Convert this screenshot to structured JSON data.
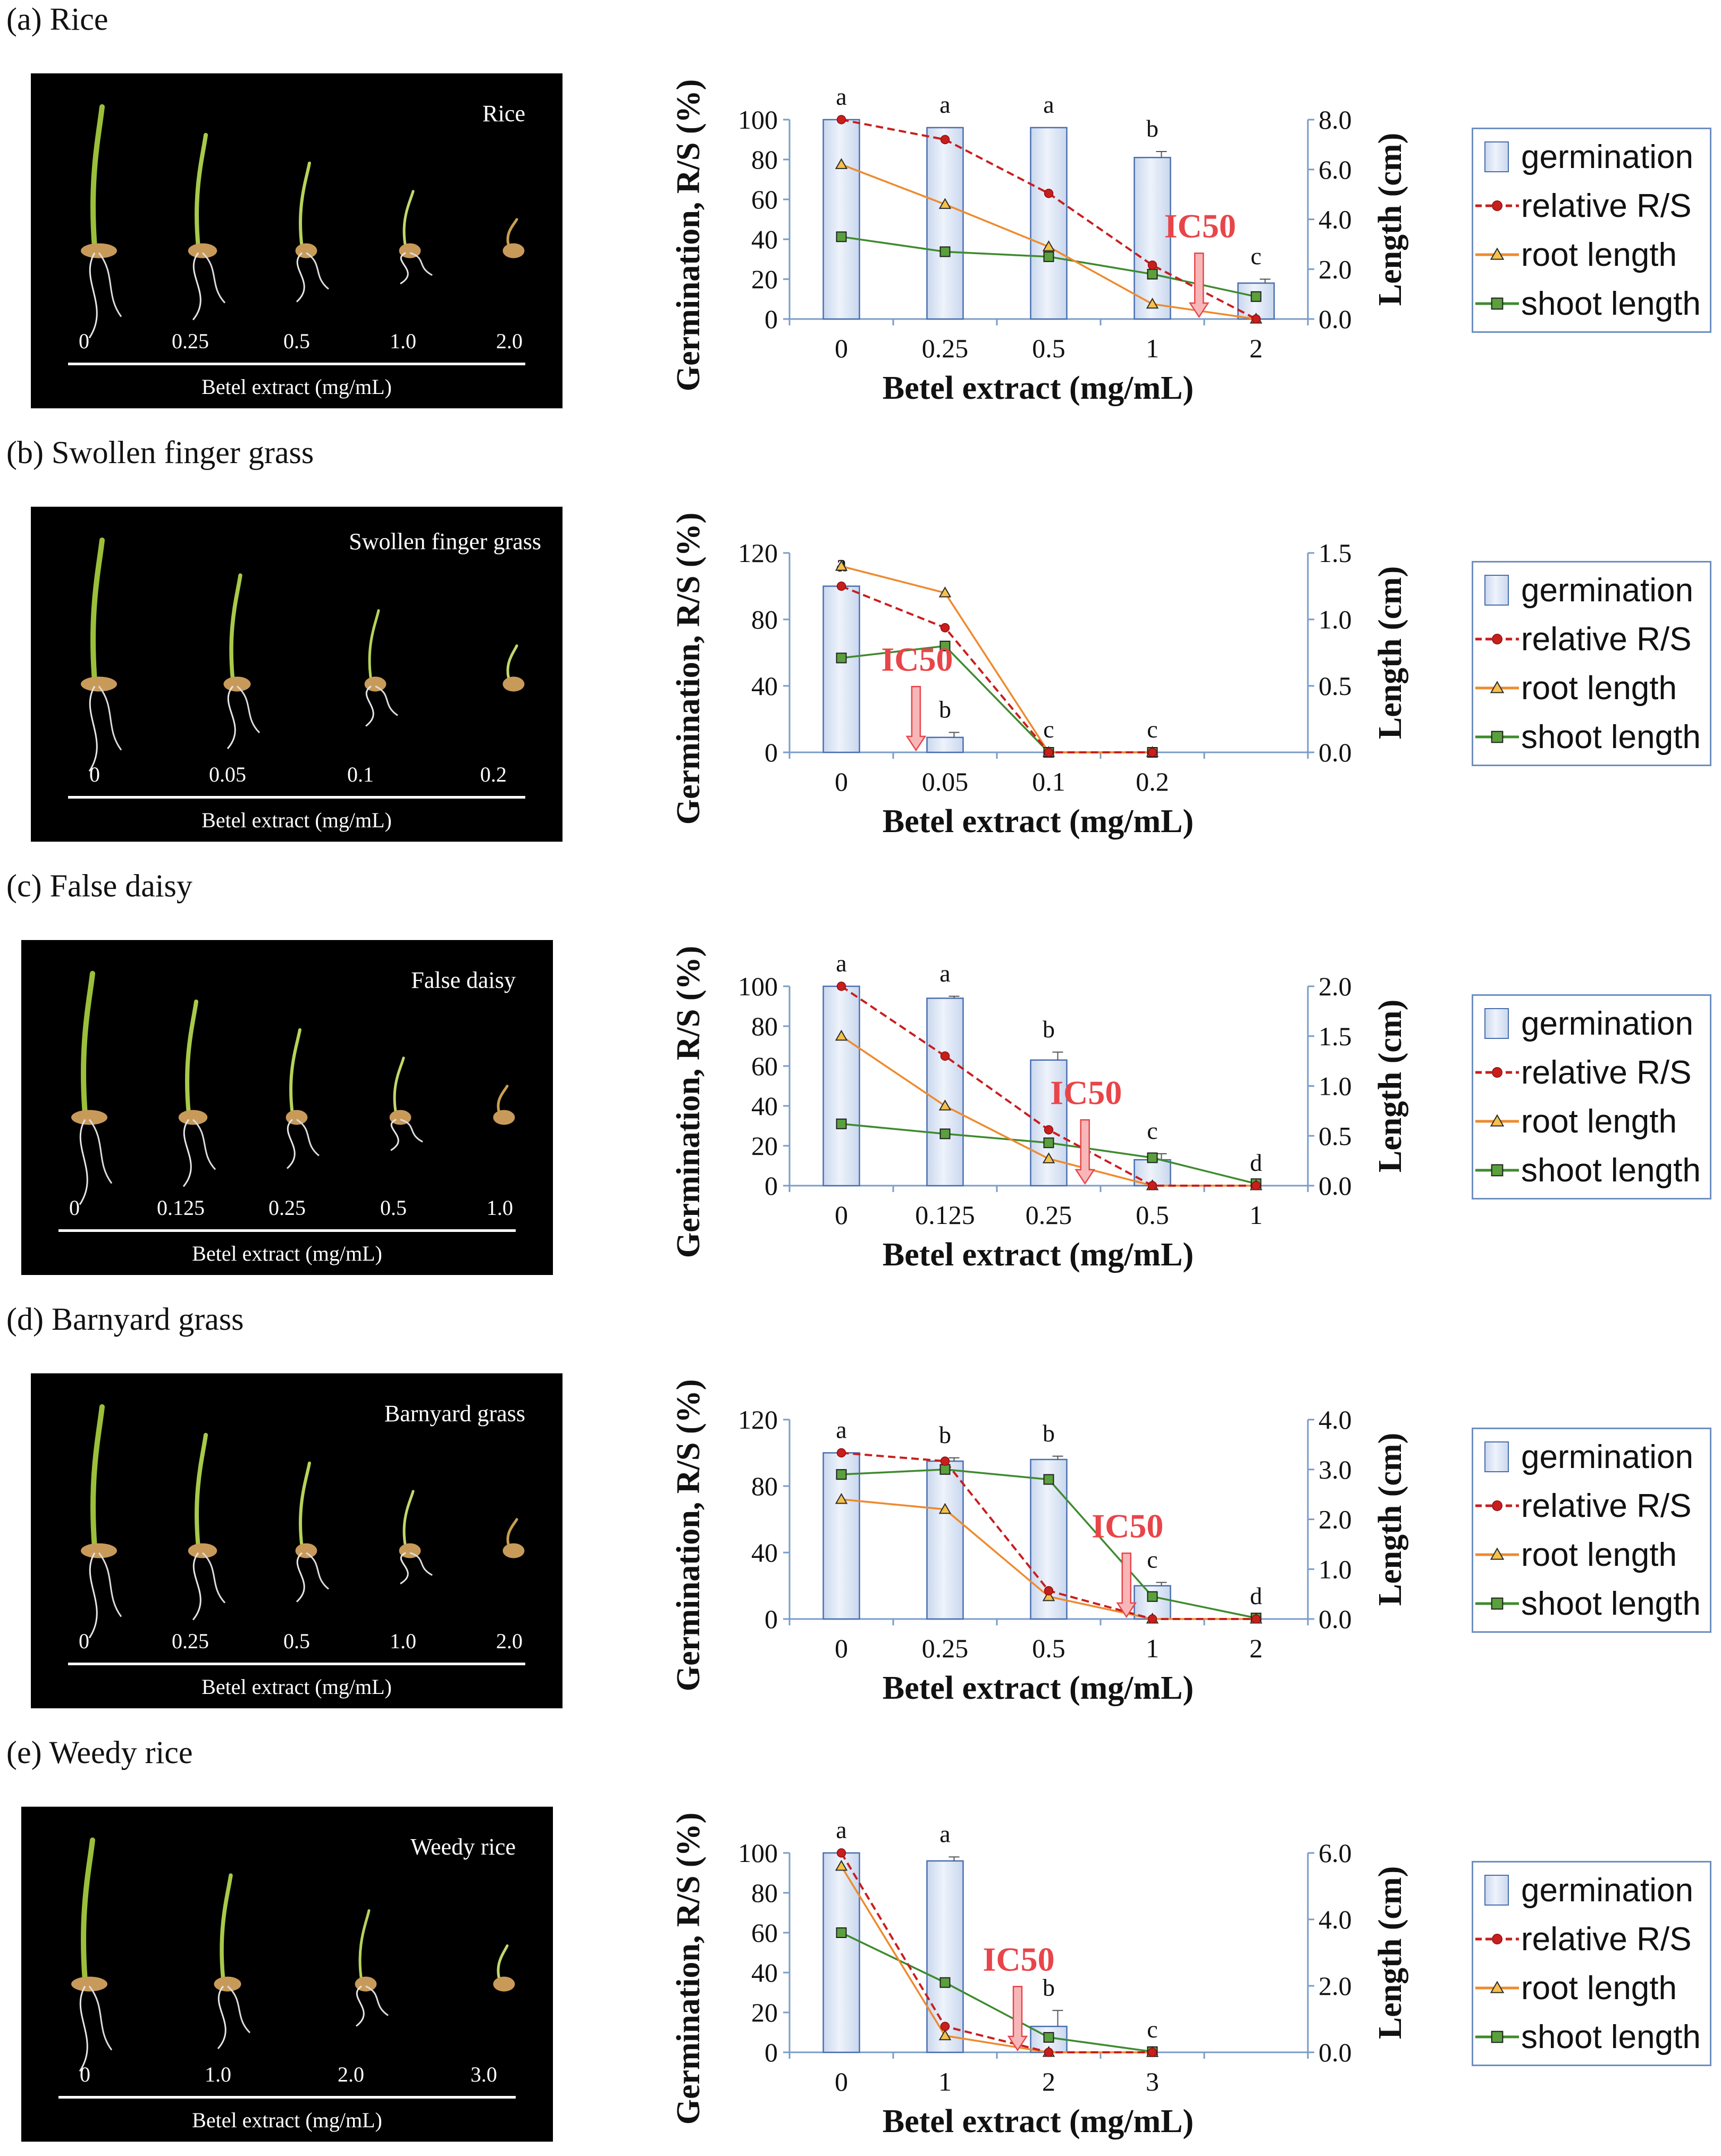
{
  "legend_labels": [
    "germination",
    "relative R/S",
    "root length",
    "shoot length"
  ],
  "ic50_label": "IC50",
  "colors": {
    "bar_fill_top": "#c9d7ee",
    "bar_fill_bottom": "#eef3fb",
    "bar_stroke": "#4a6fb0",
    "relative_rs": "#c81e1e",
    "root_length": "#ee8a2e",
    "shoot_length": "#3f8a2f",
    "ic50": "#e8454a",
    "axis": "#7a9cc8",
    "legend_border": "#6d8fbf"
  },
  "panels": [
    {
      "label": "(a) Rice",
      "photo": {
        "title": "Rice",
        "caption": "Betel extract (mg/mL)",
        "ticks": [
          "0",
          "0.25",
          "0.5",
          "1.0",
          "2.0"
        ]
      }
    },
    {
      "label": "(b) Swollen finger grass",
      "photo": {
        "title": "Swollen finger grass",
        "caption": "Betel extract (mg/mL)",
        "ticks": [
          "0",
          "0.05",
          "0.1",
          "0.2"
        ]
      }
    },
    {
      "label": "(c) False daisy",
      "photo": {
        "title": "False daisy",
        "caption": "Betel extract (mg/mL)",
        "ticks": [
          "0",
          "0.125",
          "0.25",
          "0.5",
          "1.0"
        ]
      }
    },
    {
      "label": "(d) Barnyard grass",
      "photo": {
        "title": "Barnyard grass",
        "caption": "Betel extract (mg/mL)",
        "ticks": [
          "0",
          "0.25",
          "0.5",
          "1.0",
          "2.0"
        ]
      }
    },
    {
      "label": "(e) Weedy rice",
      "photo": {
        "title": "Weedy rice",
        "caption": "Betel extract (mg/mL)",
        "ticks": [
          "0",
          "1.0",
          "2.0",
          "3.0"
        ]
      }
    }
  ],
  "chart_data": [
    {
      "type": "bar",
      "panel": "(a) Rice",
      "xlabel": "Betel extract (mg/mL)",
      "ylabel": "Germination, R/S (%)",
      "y2label": "Length (cm)",
      "categories": [
        "0",
        "0.25",
        "0.5",
        "1",
        "2"
      ],
      "ylim": [
        0,
        100
      ],
      "yticks": [
        "0",
        "20",
        "40",
        "60",
        "80",
        "100"
      ],
      "y2lim": [
        0,
        8
      ],
      "y2ticks": [
        "0.0",
        "2.0",
        "4.0",
        "6.0",
        "8.0"
      ],
      "slots": 5,
      "series": [
        {
          "name": "germination",
          "axis": "left",
          "kind": "bar",
          "values": [
            100,
            96,
            96,
            81,
            18
          ],
          "errors": [
            0,
            0,
            0,
            3,
            2
          ]
        },
        {
          "name": "relative R/S",
          "axis": "left",
          "kind": "line",
          "values": [
            100,
            90,
            63,
            27,
            0
          ]
        },
        {
          "name": "root length",
          "axis": "right",
          "kind": "line",
          "values": [
            6.2,
            4.6,
            2.9,
            0.6,
            0.0
          ]
        },
        {
          "name": "shoot length",
          "axis": "right",
          "kind": "line",
          "values": [
            3.3,
            2.7,
            2.5,
            1.8,
            0.9
          ]
        }
      ],
      "significance": [
        "a",
        "a",
        "a",
        "b",
        "c"
      ],
      "ic50": {
        "label": "IC50",
        "x": 3.45
      }
    },
    {
      "type": "bar",
      "panel": "(b) Swollen finger grass",
      "xlabel": "Betel extract (mg/mL)",
      "ylabel": "Germination, R/S (%)",
      "y2label": "Length (cm)",
      "categories": [
        "0",
        "0.05",
        "0.1",
        "0.2"
      ],
      "ylim": [
        0,
        120
      ],
      "yticks": [
        "0",
        "40",
        "80",
        "120"
      ],
      "y2lim": [
        0,
        1.5
      ],
      "y2ticks": [
        "0.0",
        "0.5",
        "1.0",
        "1.5"
      ],
      "slots": 5,
      "series": [
        {
          "name": "germination",
          "axis": "left",
          "kind": "bar",
          "values": [
            100,
            9,
            0,
            0
          ],
          "errors": [
            0,
            3,
            0,
            0
          ]
        },
        {
          "name": "relative R/S",
          "axis": "left",
          "kind": "line",
          "values": [
            100,
            75,
            0,
            0
          ]
        },
        {
          "name": "root length",
          "axis": "right",
          "kind": "line",
          "values": [
            1.4,
            1.2,
            0.0,
            0.0
          ]
        },
        {
          "name": "shoot length",
          "axis": "right",
          "kind": "line",
          "values": [
            0.71,
            0.8,
            0.0,
            0.0
          ]
        }
      ],
      "significance": [
        "a",
        "b",
        "c",
        "c"
      ],
      "ic50": {
        "label": "IC50",
        "x": 0.72
      }
    },
    {
      "type": "bar",
      "panel": "(c) False daisy",
      "xlabel": "Betel extract (mg/mL)",
      "ylabel": "Germination, R/S (%)",
      "y2label": "Length (cm)",
      "categories": [
        "0",
        "0.125",
        "0.25",
        "0.5",
        "1"
      ],
      "ylim": [
        0,
        100
      ],
      "yticks": [
        "0",
        "20",
        "40",
        "60",
        "80",
        "100"
      ],
      "y2lim": [
        0,
        2
      ],
      "y2ticks": [
        "0.0",
        "0.5",
        "1.0",
        "1.5",
        "2.0"
      ],
      "slots": 5,
      "series": [
        {
          "name": "germination",
          "axis": "left",
          "kind": "bar",
          "values": [
            100,
            94,
            63,
            13,
            0
          ],
          "errors": [
            0,
            1,
            4,
            3,
            0
          ]
        },
        {
          "name": "relative R/S",
          "axis": "left",
          "kind": "line",
          "values": [
            100,
            65,
            28,
            0,
            0
          ]
        },
        {
          "name": "root length",
          "axis": "right",
          "kind": "line",
          "values": [
            1.5,
            0.8,
            0.27,
            0.0,
            0.0
          ]
        },
        {
          "name": "shoot length",
          "axis": "right",
          "kind": "line",
          "values": [
            0.62,
            0.52,
            0.43,
            0.28,
            0.02
          ]
        }
      ],
      "significance": [
        "a",
        "a",
        "b",
        "c",
        "d"
      ],
      "ic50": {
        "label": "IC50",
        "x": 2.35
      }
    },
    {
      "type": "bar",
      "panel": "(d) Barnyard grass",
      "xlabel": "Betel extract (mg/mL)",
      "ylabel": "Germination, R/S (%)",
      "y2label": "Length (cm)",
      "categories": [
        "0",
        "0.25",
        "0.5",
        "1",
        "2"
      ],
      "ylim": [
        0,
        120
      ],
      "yticks": [
        "0",
        "40",
        "80",
        "120"
      ],
      "y2lim": [
        0,
        4
      ],
      "y2ticks": [
        "0.0",
        "1.0",
        "2.0",
        "3.0",
        "4.0"
      ],
      "slots": 5,
      "series": [
        {
          "name": "germination",
          "axis": "left",
          "kind": "bar",
          "values": [
            100,
            95,
            96,
            20,
            0
          ],
          "errors": [
            0,
            2,
            2,
            2,
            0
          ]
        },
        {
          "name": "relative R/S",
          "axis": "left",
          "kind": "line",
          "values": [
            100,
            95,
            17,
            0,
            0
          ]
        },
        {
          "name": "root length",
          "axis": "right",
          "kind": "line",
          "values": [
            2.4,
            2.2,
            0.45,
            0.0,
            0.0
          ]
        },
        {
          "name": "shoot length",
          "axis": "right",
          "kind": "line",
          "values": [
            2.9,
            3.0,
            2.8,
            0.45,
            0.02
          ]
        }
      ],
      "significance": [
        "a",
        "b",
        "b",
        "c",
        "d"
      ],
      "ic50": {
        "label": "IC50",
        "x": 2.75
      }
    },
    {
      "type": "bar",
      "panel": "(e) Weedy rice",
      "xlabel": "Betel extract (mg/mL)",
      "ylabel": "Germination, R/S (%)",
      "y2label": "Length (cm)",
      "categories": [
        "0",
        "1",
        "2",
        "3"
      ],
      "ylim": [
        0,
        100
      ],
      "yticks": [
        "0",
        "20",
        "40",
        "60",
        "80",
        "100"
      ],
      "y2lim": [
        0,
        6
      ],
      "y2ticks": [
        "0.0",
        "2.0",
        "4.0",
        "6.0"
      ],
      "slots": 5,
      "series": [
        {
          "name": "germination",
          "axis": "left",
          "kind": "bar",
          "values": [
            100,
            96,
            13,
            0
          ],
          "errors": [
            0,
            2,
            8,
            0
          ]
        },
        {
          "name": "relative R/S",
          "axis": "left",
          "kind": "line",
          "values": [
            100,
            13,
            0,
            0
          ]
        },
        {
          "name": "root length",
          "axis": "right",
          "kind": "line",
          "values": [
            5.6,
            0.5,
            0.0,
            0.0
          ]
        },
        {
          "name": "shoot length",
          "axis": "right",
          "kind": "line",
          "values": [
            3.6,
            2.1,
            0.45,
            0.02
          ]
        }
      ],
      "significance": [
        "a",
        "a",
        "b",
        "c"
      ],
      "ic50": {
        "label": "IC50",
        "x": 1.7
      }
    }
  ]
}
